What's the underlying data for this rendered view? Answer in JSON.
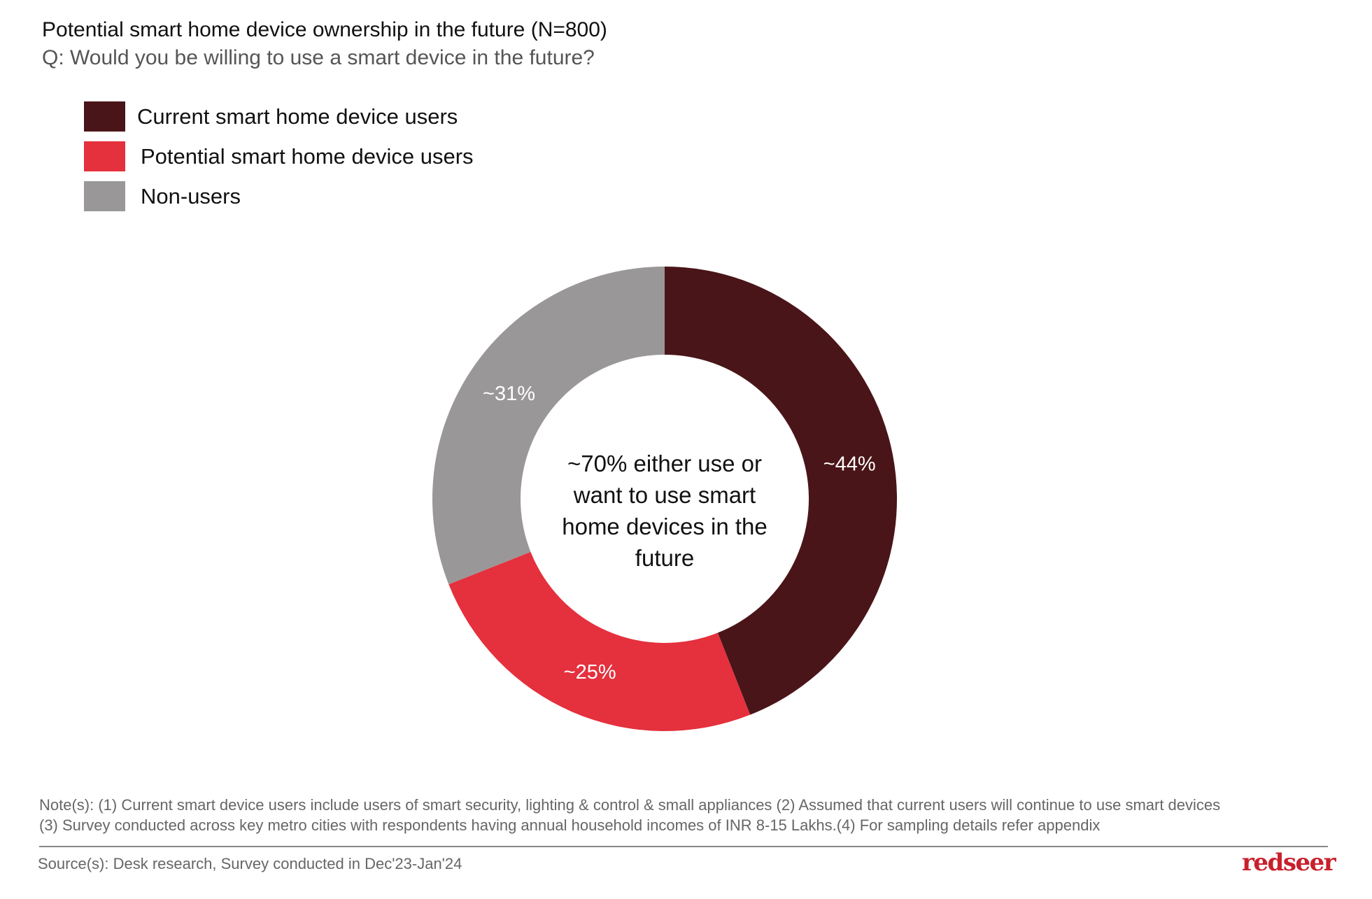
{
  "header": {
    "title": "Potential smart home device ownership in the future (N=800)",
    "subtitle": "Q: Would you be willing to use a smart device in the future?"
  },
  "chart_data": {
    "type": "pie",
    "variant": "donut",
    "start_angle": "top, clockwise",
    "legend_position": "top-left",
    "slices": [
      {
        "name": "Current smart home device users",
        "value": 44,
        "label": "~44%",
        "color": "#4a1518"
      },
      {
        "name": "Potential smart home device users",
        "value": 25,
        "label": "~25%",
        "color": "#e5303d"
      },
      {
        "name": "Non-users",
        "value": 31,
        "label": "~31%",
        "color": "#9a9798"
      }
    ],
    "center_annotation": "~70% either use or want to use smart home devices in the future"
  },
  "footer": {
    "notes_line1": "Note(s): (1) Current smart device users include users of smart security, lighting & control & small appliances (2) Assumed that current users will continue to use smart devices",
    "notes_line2": "(3) Survey conducted across key metro cities with respondents having annual household incomes of INR 8-15 Lakhs.(4) For sampling details refer appendix",
    "source": "Source(s): Desk research, Survey conducted in Dec'23-Jan'24",
    "logo": "redseer"
  }
}
